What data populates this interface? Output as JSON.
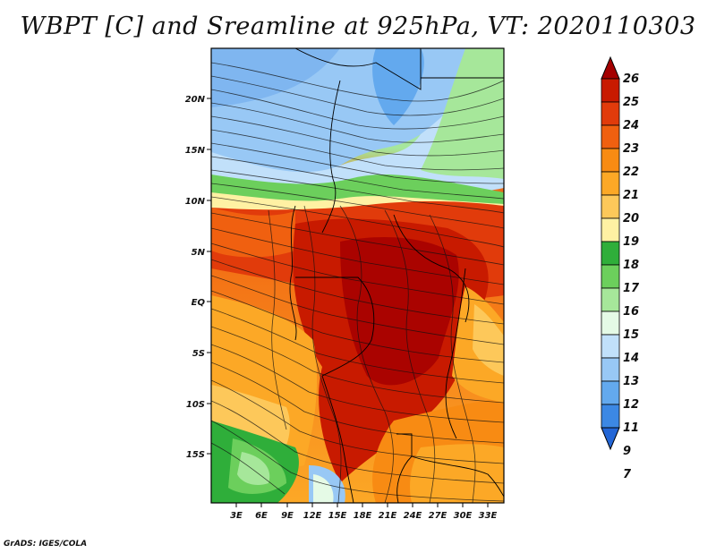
{
  "title": "WBPT [C] and Sreamline at 925hPa, VT: 2020110303",
  "footer": "GrADS: IGES/COLA",
  "map": {
    "lat_labels": [
      "20N",
      "15N",
      "10N",
      "5N",
      "EQ",
      "5S",
      "10S",
      "15S"
    ],
    "lon_labels": [
      "3E",
      "6E",
      "9E",
      "12E",
      "15E",
      "18E",
      "21E",
      "24E",
      "27E",
      "30E",
      "33E"
    ]
  },
  "colorbar": {
    "labels": [
      "26",
      "25",
      "24",
      "23",
      "22",
      "21",
      "20",
      "19",
      "18",
      "17",
      "16",
      "15",
      "14",
      "13",
      "12",
      "11",
      "9",
      "7"
    ],
    "colors": [
      "#a40000",
      "#c81a00",
      "#e13b0b",
      "#f06010",
      "#f88b13",
      "#fca826",
      "#fdc85a",
      "#fff1a3",
      "#2fae3a",
      "#6ccf5c",
      "#a6e79a",
      "#e5fae6",
      "#c1e0fa",
      "#98c8f5",
      "#63a9ee",
      "#3c88e4",
      "#2366d6"
    ]
  }
}
